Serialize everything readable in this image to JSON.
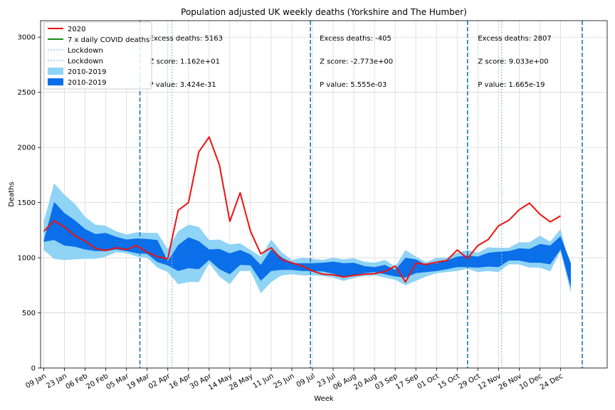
{
  "chart_data": {
    "type": "line",
    "title": "Population adjusted UK weekly deaths (Yorkshire and The Humber)",
    "xlabel": "Week",
    "ylabel": "Deaths",
    "ylim": [
      0,
      3150
    ],
    "yticks": [
      0,
      500,
      1000,
      1500,
      2000,
      2500,
      3000
    ],
    "xtick_labels": [
      "09 Jan",
      "23 Jan",
      "06 Feb",
      "20 Feb",
      "05 Mar",
      "19 Mar",
      "02 Apr",
      "16 Apr",
      "30 Apr",
      "14 May",
      "28 May",
      "11 Jun",
      "25 Jun",
      "09 Jul",
      "23 Jul",
      "06 Aug",
      "20 Aug",
      "03 Sep",
      "17 Sep",
      "01 Oct",
      "15 Oct",
      "29 Oct",
      "12 Nov",
      "26 Nov",
      "10 Dec",
      "24 Dec"
    ],
    "grid": true,
    "legend_position": "top-left",
    "colors": {
      "line_2020": "#ee1111",
      "covid": "#1a8a1a",
      "lockdown": "#8fb8d8",
      "band_outer": "#8fd3f5",
      "band_inner": "#0a6fe8",
      "period_divider": "#1f77b4"
    },
    "series_2020": {
      "name": "2020",
      "values": [
        1240,
        1335,
        1280,
        1200,
        1150,
        1085,
        1065,
        1090,
        1075,
        1110,
        1050,
        1010,
        990,
        1430,
        1500,
        1960,
        2095,
        1840,
        1330,
        1590,
        1240,
        1035,
        1090,
        985,
        955,
        925,
        880,
        850,
        845,
        825,
        840,
        850,
        855,
        875,
        925,
        780,
        950,
        940,
        960,
        975,
        1070,
        995,
        1110,
        1165,
        1290,
        1340,
        1435,
        1495,
        1395,
        1325,
        1380
      ]
    },
    "covid_series_name": "7 x daily COVID deaths",
    "lockdown_labels": [
      "Lockdown",
      "Lockdown"
    ],
    "lockdown_weeks": [
      12.4,
      44.3
    ],
    "period_dividers": [
      9.3,
      25.8,
      41.0,
      52.1
    ],
    "band_outer": {
      "name": "2010-2019",
      "upper": [
        1330,
        1675,
        1570,
        1490,
        1370,
        1300,
        1290,
        1240,
        1210,
        1230,
        1225,
        1225,
        1080,
        1240,
        1300,
        1280,
        1160,
        1165,
        1120,
        1130,
        1070,
        1010,
        1165,
        1050,
        980,
        1000,
        990,
        980,
        1000,
        985,
        995,
        965,
        955,
        980,
        920,
        1070,
        1010,
        960,
        1000,
        1000,
        1045,
        1070,
        1045,
        1095,
        1090,
        1090,
        1140,
        1140,
        1200,
        1145,
        1260,
        880
      ],
      "lower": [
        1070,
        990,
        980,
        985,
        990,
        990,
        1010,
        1050,
        1040,
        1010,
        1000,
        910,
        870,
        760,
        780,
        780,
        950,
        830,
        760,
        880,
        880,
        680,
        780,
        840,
        850,
        840,
        840,
        835,
        820,
        790,
        815,
        835,
        840,
        820,
        800,
        750,
        790,
        830,
        860,
        870,
        880,
        900,
        870,
        880,
        870,
        940,
        940,
        910,
        910,
        875,
        1060,
        680
      ]
    },
    "band_inner": {
      "name": "2010-2019",
      "upper": [
        1155,
        1505,
        1405,
        1340,
        1260,
        1215,
        1225,
        1190,
        1165,
        1175,
        1170,
        1160,
        970,
        1115,
        1185,
        1150,
        1075,
        1080,
        1040,
        1070,
        1030,
        935,
        1075,
        1005,
        950,
        950,
        950,
        955,
        965,
        950,
        955,
        925,
        915,
        935,
        890,
        1000,
        985,
        935,
        950,
        975,
        1010,
        1020,
        1010,
        1045,
        1055,
        1060,
        1085,
        1080,
        1125,
        1110,
        1195,
        950
      ],
      "lower": [
        1145,
        1160,
        1110,
        1100,
        1075,
        1060,
        1060,
        1075,
        1060,
        1040,
        1035,
        960,
        930,
        880,
        905,
        895,
        980,
        895,
        850,
        935,
        930,
        790,
        880,
        890,
        890,
        880,
        880,
        875,
        855,
        825,
        840,
        860,
        870,
        850,
        830,
        820,
        860,
        870,
        880,
        895,
        915,
        915,
        910,
        920,
        915,
        975,
        975,
        955,
        955,
        940,
        1075,
        725
      ]
    },
    "annotations": [
      {
        "lines": [
          "Excess deaths: 5163",
          "Z score: 1.162e+01",
          "P value: 3.424e-31"
        ],
        "week": 10.2
      },
      {
        "lines": [
          "Excess deaths: -405",
          "Z score: -2.773e+00",
          "P value: 5.555e-03"
        ],
        "week": 26.7
      },
      {
        "lines": [
          "Excess deaths: 2807",
          "Z score: 9.033e+00",
          "P value: 1.665e-19"
        ],
        "week": 42.0
      }
    ]
  }
}
